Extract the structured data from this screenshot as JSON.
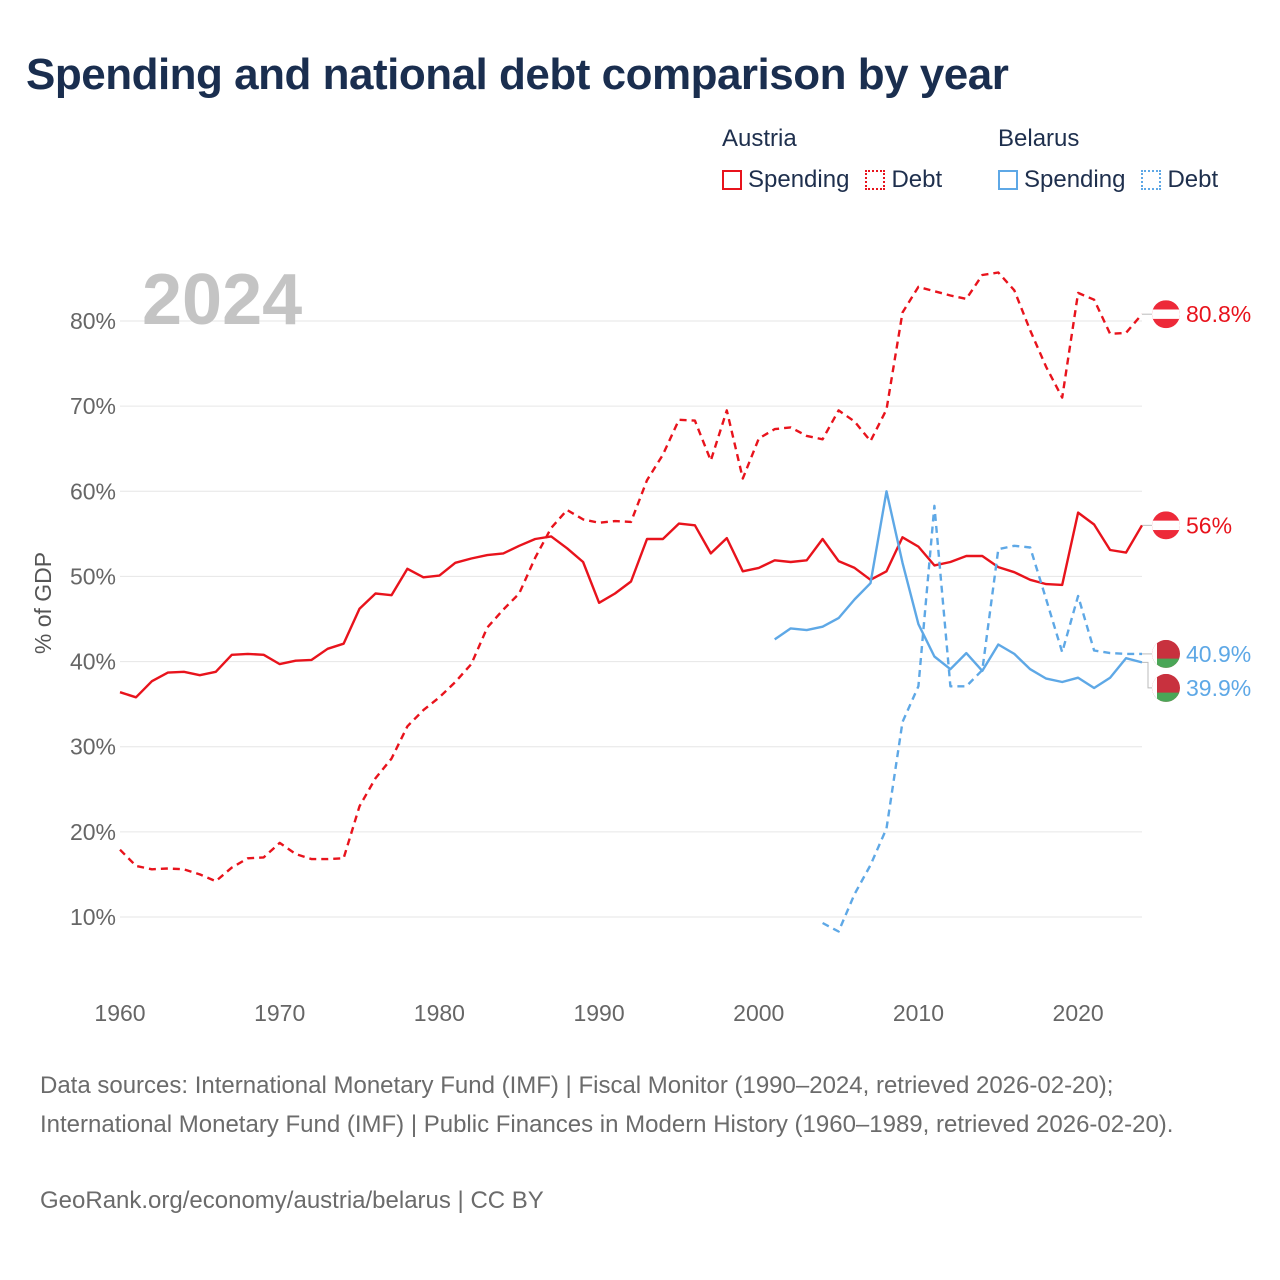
{
  "title": "Spending and national debt comparison by year",
  "legend": {
    "austria": {
      "name": "Austria",
      "spending": "Spending",
      "debt": "Debt",
      "color": "#e8131c"
    },
    "belarus": {
      "name": "Belarus",
      "spending": "Spending",
      "debt": "Debt",
      "color": "#5ea8e6"
    }
  },
  "chart_data": {
    "type": "line",
    "year_label": "2024",
    "ylabel": "% of GDP",
    "xlim": [
      1960,
      2024
    ],
    "ylim": [
      0,
      90
    ],
    "xticks": [
      1960,
      1970,
      1980,
      1990,
      2000,
      2010,
      2020
    ],
    "yticks": [
      10,
      20,
      30,
      40,
      50,
      60,
      70,
      80
    ],
    "ytick_labels": [
      "10%",
      "20%",
      "30%",
      "40%",
      "50%",
      "60%",
      "70%",
      "80%"
    ],
    "series": [
      {
        "name": "Austria Spending",
        "country": "Austria",
        "style": "solid",
        "color": "#e8131c",
        "end_label": "56%",
        "flag": "austria",
        "x": [
          1960,
          1961,
          1962,
          1963,
          1964,
          1965,
          1966,
          1967,
          1968,
          1969,
          1970,
          1971,
          1972,
          1973,
          1974,
          1975,
          1976,
          1977,
          1978,
          1979,
          1980,
          1981,
          1982,
          1983,
          1984,
          1985,
          1986,
          1987,
          1988,
          1989,
          1990,
          1991,
          1992,
          1993,
          1994,
          1995,
          1996,
          1997,
          1998,
          1999,
          2000,
          2001,
          2002,
          2003,
          2004,
          2005,
          2006,
          2007,
          2008,
          2009,
          2010,
          2011,
          2012,
          2013,
          2014,
          2015,
          2016,
          2017,
          2018,
          2019,
          2020,
          2021,
          2022,
          2023,
          2024
        ],
        "values": [
          36.4,
          35.8,
          37.7,
          38.7,
          38.8,
          38.4,
          38.8,
          40.8,
          40.9,
          40.8,
          39.7,
          40.1,
          40.2,
          41.5,
          42.1,
          46.2,
          48.0,
          47.8,
          50.9,
          49.9,
          50.1,
          51.6,
          52.1,
          52.5,
          52.7,
          53.6,
          54.4,
          54.7,
          53.3,
          51.7,
          46.9,
          48.0,
          49.4,
          54.4,
          54.4,
          56.2,
          56.0,
          52.7,
          54.5,
          50.6,
          51.0,
          51.9,
          51.7,
          51.9,
          54.4,
          51.8,
          51.0,
          49.6,
          50.6,
          54.6,
          53.5,
          51.3,
          51.7,
          52.4,
          52.4,
          51.1,
          50.5,
          49.6,
          49.1,
          49.0,
          57.5,
          56.1,
          53.1,
          52.8,
          56.0
        ]
      },
      {
        "name": "Austria Debt",
        "country": "Austria",
        "style": "dashed",
        "color": "#e8131c",
        "end_label": "80.8%",
        "flag": "austria",
        "x": [
          1960,
          1961,
          1962,
          1963,
          1964,
          1965,
          1966,
          1967,
          1968,
          1969,
          1970,
          1971,
          1972,
          1973,
          1974,
          1975,
          1976,
          1977,
          1978,
          1979,
          1980,
          1981,
          1982,
          1983,
          1984,
          1985,
          1986,
          1987,
          1988,
          1989,
          1990,
          1991,
          1992,
          1993,
          1994,
          1995,
          1996,
          1997,
          1998,
          1999,
          2000,
          2001,
          2002,
          2003,
          2004,
          2005,
          2006,
          2007,
          2008,
          2009,
          2010,
          2011,
          2012,
          2013,
          2014,
          2015,
          2016,
          2017,
          2018,
          2019,
          2020,
          2021,
          2022,
          2023,
          2024
        ],
        "values": [
          17.9,
          16.0,
          15.6,
          15.7,
          15.6,
          15.0,
          14.2,
          15.8,
          16.9,
          17.0,
          18.7,
          17.4,
          16.8,
          16.8,
          16.9,
          23.0,
          26.3,
          28.6,
          32.4,
          34.3,
          35.8,
          37.6,
          39.7,
          44.0,
          46.1,
          48.0,
          52.2,
          55.7,
          57.8,
          56.7,
          56.3,
          56.5,
          56.4,
          61.3,
          64.3,
          68.4,
          68.3,
          63.6,
          69.5,
          61.5,
          66.2,
          67.3,
          67.5,
          66.5,
          66.1,
          69.5,
          68.2,
          65.9,
          69.6,
          81.0,
          84.0,
          83.5,
          83.0,
          82.6,
          85.4,
          85.7,
          83.6,
          78.9,
          74.6,
          71.0,
          83.3,
          82.5,
          78.5,
          78.6,
          80.8
        ]
      },
      {
        "name": "Belarus Spending",
        "country": "Belarus",
        "style": "solid",
        "color": "#5ea8e6",
        "end_label": "39.9%",
        "flag": "belarus",
        "x": [
          2001,
          2002,
          2003,
          2004,
          2005,
          2006,
          2007,
          2008,
          2009,
          2010,
          2011,
          2012,
          2013,
          2014,
          2015,
          2016,
          2017,
          2018,
          2019,
          2020,
          2021,
          2022,
          2023,
          2024
        ],
        "values": [
          42.6,
          43.9,
          43.7,
          44.1,
          45.1,
          47.3,
          49.2,
          60.0,
          51.6,
          44.4,
          40.6,
          39.1,
          41.0,
          38.9,
          42.0,
          40.9,
          39.1,
          38.0,
          37.6,
          38.1,
          36.9,
          38.1,
          40.4,
          39.9
        ]
      },
      {
        "name": "Belarus Debt",
        "country": "Belarus",
        "style": "dashed",
        "color": "#5ea8e6",
        "end_label": "40.9%",
        "flag": "belarus",
        "x": [
          2004,
          2005,
          2006,
          2007,
          2008,
          2009,
          2010,
          2011,
          2012,
          2013,
          2014,
          2015,
          2016,
          2017,
          2018,
          2019,
          2020,
          2021,
          2022,
          2023,
          2024
        ],
        "values": [
          9.3,
          8.3,
          12.7,
          16.1,
          20.4,
          32.9,
          37.1,
          58.3,
          37.1,
          37.1,
          39.0,
          53.2,
          53.6,
          53.4,
          47.3,
          41.1,
          47.7,
          41.3,
          41.0,
          40.9,
          40.9
        ]
      }
    ]
  },
  "footer": {
    "sources": "Data sources: International Monetary Fund (IMF) | Fiscal Monitor (1990–2024, retrieved 2026-02-20); International Monetary Fund (IMF) | Public Finances in Modern History (1960–1989, retrieved 2026-02-20).",
    "credit": "GeoRank.org/economy/austria/belarus | CC BY"
  }
}
